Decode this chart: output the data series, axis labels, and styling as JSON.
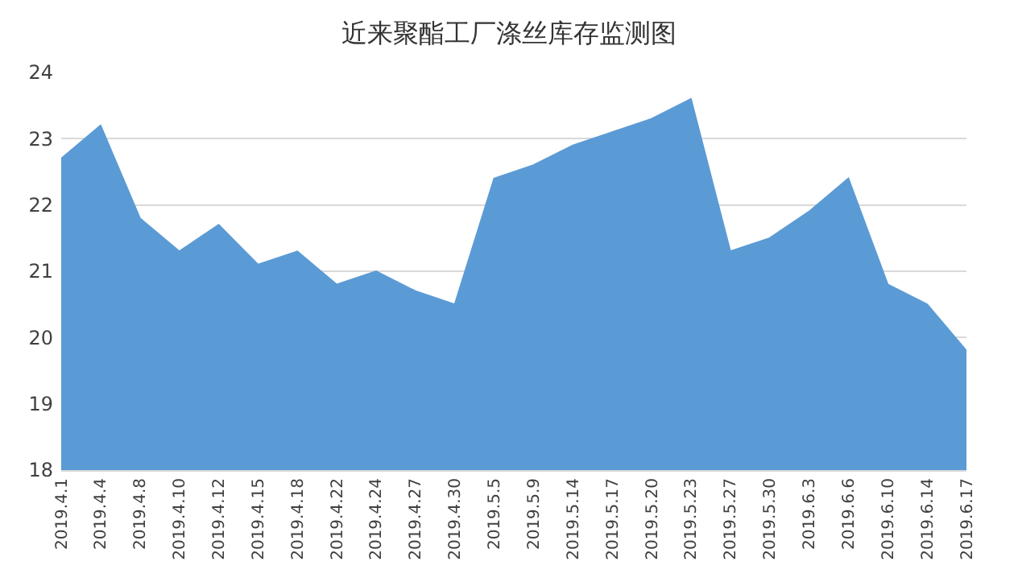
{
  "chart_data": {
    "type": "area",
    "title": "近来聚酯工厂涤丝库存监测图",
    "categories": [
      "2019.4.1",
      "2019.4.4",
      "2019.4.8",
      "2019.4.10",
      "2019.4.12",
      "2019.4.15",
      "2019.4.18",
      "2019.4.22",
      "2019.4.24",
      "2019.4.27",
      "2019.4.30",
      "2019.5.5",
      "2019.5.9",
      "2019.5.14",
      "2019.5.17",
      "2019.5.20",
      "2019.5.23",
      "2019.5.27",
      "2019.5.30",
      "2019.6.3",
      "2019.6.6",
      "2019.6.10",
      "2019.6.14",
      "2019.6.17"
    ],
    "values": [
      22.7,
      23.2,
      21.8,
      21.3,
      21.7,
      21.1,
      21.3,
      20.8,
      21.0,
      20.7,
      20.5,
      22.4,
      22.6,
      22.9,
      23.1,
      23.3,
      23.6,
      21.3,
      21.5,
      21.9,
      22.4,
      20.8,
      20.5,
      19.8
    ],
    "color": "#5b9bd5",
    "ylim": [
      18,
      24
    ],
    "yticks": [
      18,
      19,
      20,
      21,
      22,
      23,
      24
    ],
    "grid": "y"
  }
}
